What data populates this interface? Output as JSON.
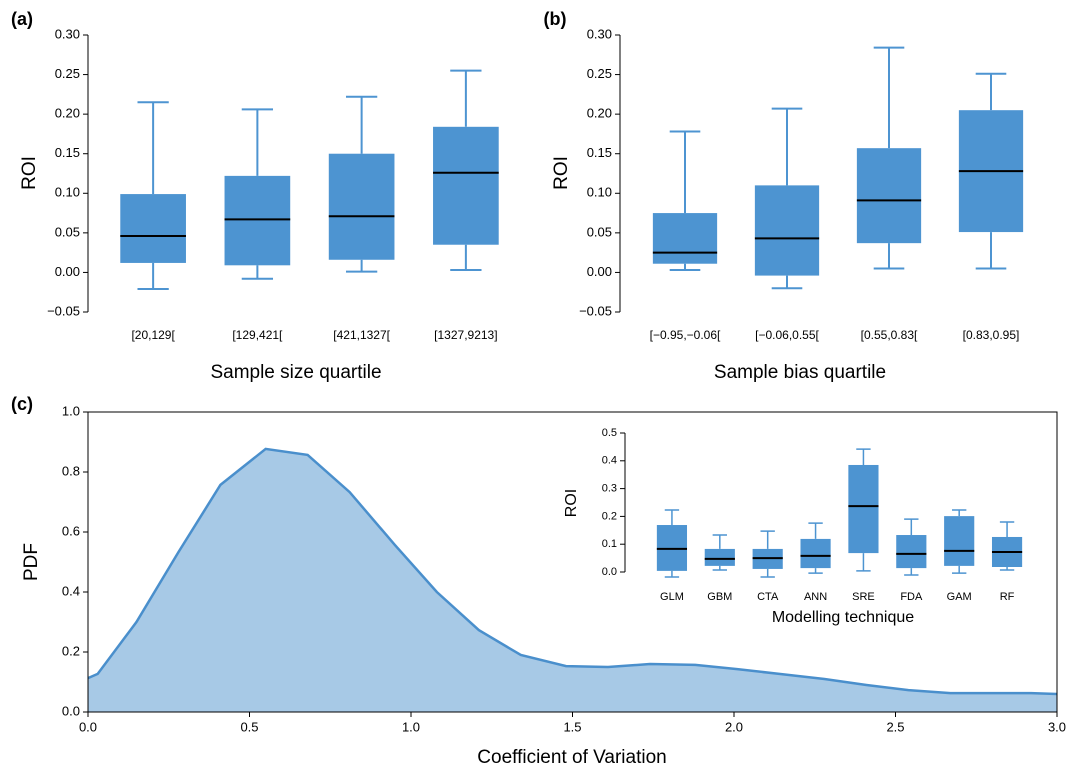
{
  "chart_data": [
    {
      "type": "box",
      "label": "(a)",
      "x_label": "Sample size quartile",
      "y_label": "ROI",
      "color": "#4d94d1",
      "median_color": "#000000",
      "categories": [
        "[20,129[",
        "[129,421[",
        "[421,1327[",
        "[1327,9213]"
      ],
      "boxes": [
        {
          "whislo": -0.021,
          "q1": 0.012,
          "med": 0.046,
          "q3": 0.099,
          "whishi": 0.215
        },
        {
          "whislo": -0.008,
          "q1": 0.009,
          "med": 0.067,
          "q3": 0.122,
          "whishi": 0.206
        },
        {
          "whislo": 0.001,
          "q1": 0.016,
          "med": 0.071,
          "q3": 0.15,
          "whishi": 0.222
        },
        {
          "whislo": 0.003,
          "q1": 0.035,
          "med": 0.126,
          "q3": 0.184,
          "whishi": 0.255
        }
      ],
      "ylim": [
        -0.05,
        0.3
      ],
      "yticks": [
        {
          "value": -0.05,
          "label": "−0.05"
        },
        {
          "value": 0,
          "label": "0.00"
        },
        0.05,
        {
          "value": 0.1,
          "label": "0.10"
        },
        0.15,
        {
          "value": 0.2,
          "label": "0.20"
        },
        0.25,
        {
          "value": 0.3,
          "label": "0.30"
        }
      ]
    },
    {
      "type": "box",
      "label": "(b)",
      "x_label": "Sample bias quartile",
      "y_label": "ROI",
      "color": "#4d94d1",
      "median_color": "#000000",
      "categories": [
        "[−0.95,−0.06[",
        "[−0.06,0.55[",
        "[0.55,0.83[",
        "[0.83,0.95]"
      ],
      "boxes": [
        {
          "whislo": 0.003,
          "q1": 0.011,
          "med": 0.025,
          "q3": 0.075,
          "whishi": 0.178
        },
        {
          "whislo": -0.02,
          "q1": -0.004,
          "med": 0.043,
          "q3": 0.11,
          "whishi": 0.207
        },
        {
          "whislo": 0.005,
          "q1": 0.037,
          "med": 0.091,
          "q3": 0.157,
          "whishi": 0.284
        },
        {
          "whislo": 0.005,
          "q1": 0.051,
          "med": 0.128,
          "q3": 0.205,
          "whishi": 0.251
        }
      ],
      "ylim": [
        -0.05,
        0.3
      ],
      "yticks": [
        {
          "value": -0.05,
          "label": "−0.05"
        },
        {
          "value": 0,
          "label": "0.00"
        },
        0.05,
        {
          "value": 0.1,
          "label": "0.10"
        },
        0.15,
        {
          "value": 0.2,
          "label": "0.20"
        },
        0.25,
        {
          "value": 0.3,
          "label": "0.30"
        }
      ]
    },
    {
      "type": "area",
      "label": "(c)",
      "x_label": "Coefficient of Variation",
      "y_label": "PDF",
      "color": "#4a8fcc",
      "fill": "#a7c9e6",
      "x": [
        0,
        0.03,
        0.15,
        0.28,
        0.41,
        0.55,
        0.68,
        0.81,
        0.95,
        1.08,
        1.21,
        1.34,
        1.48,
        1.61,
        1.74,
        1.88,
        2.01,
        2.14,
        2.28,
        2.41,
        2.54,
        2.67,
        2.82,
        2.92,
        3.0
      ],
      "values": [
        0.113,
        0.127,
        0.3,
        0.533,
        0.757,
        0.877,
        0.857,
        0.733,
        0.557,
        0.4,
        0.273,
        0.19,
        0.153,
        0.15,
        0.16,
        0.157,
        0.143,
        0.127,
        0.11,
        0.09,
        0.073,
        0.063,
        0.063,
        0.063,
        0.06
      ],
      "xlim": [
        0,
        3.0
      ],
      "ylim": [
        0,
        1.0
      ],
      "xticks": [
        {
          "value": 0,
          "label": "0.0"
        },
        0.5,
        {
          "value": 1,
          "label": "1.0"
        },
        1.5,
        {
          "value": 2,
          "label": "2.0"
        },
        2.5,
        {
          "value": 3,
          "label": "3.0"
        }
      ],
      "yticks": [
        {
          "value": 0,
          "label": "0.0"
        },
        0.2,
        0.4,
        0.6,
        0.8,
        {
          "value": 1,
          "label": "1.0"
        }
      ]
    },
    {
      "type": "box",
      "x_label": "Modelling technique",
      "y_label": "ROI",
      "color": "#4d94d1",
      "median_color": "#000000",
      "categories": [
        "GLM",
        "GBM",
        "CTA",
        "ANN",
        "SRE",
        "FDA",
        "GAM",
        "RF"
      ],
      "boxes": [
        {
          "whislo": -0.018,
          "q1": 0.004,
          "med": 0.083,
          "q3": 0.169,
          "whishi": 0.223
        },
        {
          "whislo": 0.007,
          "q1": 0.022,
          "med": 0.047,
          "q3": 0.083,
          "whishi": 0.133
        },
        {
          "whislo": -0.018,
          "q1": 0.011,
          "med": 0.05,
          "q3": 0.083,
          "whishi": 0.147
        },
        {
          "whislo": -0.004,
          "q1": 0.014,
          "med": 0.058,
          "q3": 0.119,
          "whishi": 0.176
        },
        {
          "whislo": 0.004,
          "q1": 0.068,
          "med": 0.237,
          "q3": 0.385,
          "whishi": 0.442
        },
        {
          "whislo": -0.011,
          "q1": 0.014,
          "med": 0.065,
          "q3": 0.133,
          "whishi": 0.19
        },
        {
          "whislo": -0.004,
          "q1": 0.022,
          "med": 0.076,
          "q3": 0.201,
          "whishi": 0.223
        },
        {
          "whislo": 0.007,
          "q1": 0.018,
          "med": 0.072,
          "q3": 0.126,
          "whishi": 0.18
        }
      ],
      "ylim": [
        0,
        0.5
      ],
      "yticks": [
        {
          "value": 0,
          "label": "0.0"
        },
        0.1,
        0.2,
        0.3,
        0.4,
        0.5
      ]
    }
  ]
}
